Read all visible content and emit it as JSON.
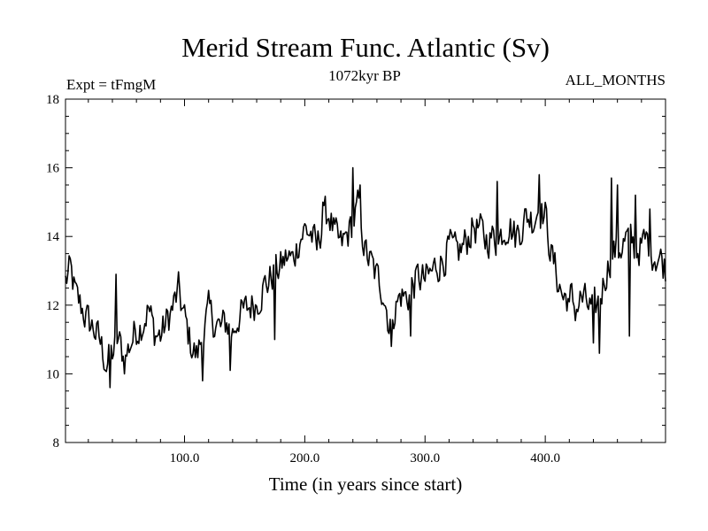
{
  "chart_data": {
    "type": "line",
    "title": "Merid Stream Func. Atlantic (Sv)",
    "subtitle_left": "Expt = tFmgM",
    "subtitle_center": "1072kyr BP",
    "subtitle_right": "ALL_MONTHS",
    "xlabel": "Time (in years since start)",
    "ylabel": "",
    "xlim": [
      1,
      500
    ],
    "ylim": [
      8,
      18
    ],
    "xticks": [
      100,
      200,
      300,
      400
    ],
    "xtick_labels": [
      "100.0",
      "200.0",
      "300.0",
      "400.0"
    ],
    "yticks": [
      8,
      10,
      12,
      14,
      16,
      18
    ],
    "ytick_labels": [
      "8",
      "10",
      "12",
      "14",
      "16",
      "18"
    ],
    "grid": false,
    "anchors": [
      [
        1,
        12.7
      ],
      [
        5,
        13.0
      ],
      [
        10,
        12.2
      ],
      [
        15,
        11.9
      ],
      [
        20,
        11.5
      ],
      [
        25,
        11.3
      ],
      [
        30,
        10.9
      ],
      [
        35,
        10.3
      ],
      [
        40,
        10.6
      ],
      [
        45,
        11.0
      ],
      [
        50,
        10.4
      ],
      [
        55,
        10.9
      ],
      [
        60,
        11.3
      ],
      [
        65,
        11.5
      ],
      [
        70,
        11.9
      ],
      [
        75,
        11.2
      ],
      [
        80,
        11.1
      ],
      [
        85,
        11.5
      ],
      [
        90,
        11.9
      ],
      [
        95,
        12.4
      ],
      [
        100,
        11.6
      ],
      [
        105,
        10.9
      ],
      [
        110,
        10.5
      ],
      [
        115,
        11.1
      ],
      [
        120,
        11.8
      ],
      [
        125,
        11.5
      ],
      [
        130,
        11.3
      ],
      [
        135,
        11.5
      ],
      [
        140,
        11.2
      ],
      [
        145,
        11.7
      ],
      [
        150,
        11.8
      ],
      [
        155,
        12.0
      ],
      [
        160,
        12.1
      ],
      [
        165,
        12.5
      ],
      [
        170,
        12.7
      ],
      [
        175,
        13.0
      ],
      [
        180,
        13.1
      ],
      [
        185,
        13.4
      ],
      [
        190,
        13.3
      ],
      [
        195,
        13.9
      ],
      [
        200,
        14.2
      ],
      [
        205,
        14.1
      ],
      [
        210,
        13.6
      ],
      [
        215,
        14.5
      ],
      [
        220,
        14.7
      ],
      [
        225,
        14.0
      ],
      [
        230,
        13.7
      ],
      [
        235,
        14.0
      ],
      [
        240,
        14.4
      ],
      [
        245,
        14.9
      ],
      [
        250,
        13.6
      ],
      [
        255,
        13.2
      ],
      [
        260,
        12.8
      ],
      [
        265,
        12.5
      ],
      [
        270,
        11.5
      ],
      [
        275,
        11.9
      ],
      [
        280,
        12.3
      ],
      [
        285,
        12.2
      ],
      [
        290,
        12.6
      ],
      [
        295,
        12.8
      ],
      [
        300,
        12.7
      ],
      [
        305,
        12.9
      ],
      [
        310,
        13.2
      ],
      [
        315,
        13.3
      ],
      [
        320,
        13.7
      ],
      [
        325,
        13.5
      ],
      [
        330,
        13.6
      ],
      [
        335,
        13.9
      ],
      [
        340,
        14.3
      ],
      [
        345,
        14.2
      ],
      [
        350,
        13.9
      ],
      [
        355,
        14.0
      ],
      [
        360,
        13.8
      ],
      [
        365,
        14.2
      ],
      [
        370,
        14.4
      ],
      [
        375,
        14.0
      ],
      [
        380,
        14.3
      ],
      [
        385,
        14.6
      ],
      [
        390,
        14.5
      ],
      [
        395,
        14.9
      ],
      [
        400,
        14.6
      ],
      [
        405,
        13.5
      ],
      [
        410,
        12.8
      ],
      [
        415,
        12.2
      ],
      [
        420,
        12.3
      ],
      [
        425,
        11.9
      ],
      [
        430,
        12.2
      ],
      [
        435,
        12.0
      ],
      [
        440,
        11.8
      ],
      [
        445,
        12.1
      ],
      [
        450,
        12.9
      ],
      [
        455,
        13.5
      ],
      [
        460,
        13.6
      ],
      [
        465,
        13.8
      ],
      [
        470,
        14.0
      ],
      [
        475,
        13.6
      ],
      [
        480,
        13.7
      ],
      [
        485,
        13.9
      ],
      [
        490,
        13.5
      ],
      [
        495,
        13.4
      ],
      [
        500,
        13.1
      ]
    ],
    "noise_amplitude": 0.75,
    "spikes": [
      [
        38,
        9.6
      ],
      [
        43,
        12.9
      ],
      [
        115,
        9.8
      ],
      [
        138,
        10.1
      ],
      [
        240,
        16.0
      ],
      [
        246,
        15.5
      ],
      [
        272,
        10.8
      ],
      [
        288,
        11.1
      ],
      [
        395,
        15.8
      ],
      [
        445,
        10.6
      ],
      [
        455,
        15.7
      ],
      [
        460,
        15.5
      ],
      [
        470,
        11.1
      ],
      [
        440,
        10.9
      ],
      [
        475,
        15.2
      ],
      [
        487,
        14.8
      ],
      [
        420,
        12.1
      ],
      [
        360,
        15.6
      ],
      [
        215,
        15.0
      ],
      [
        175,
        11.0
      ]
    ]
  }
}
